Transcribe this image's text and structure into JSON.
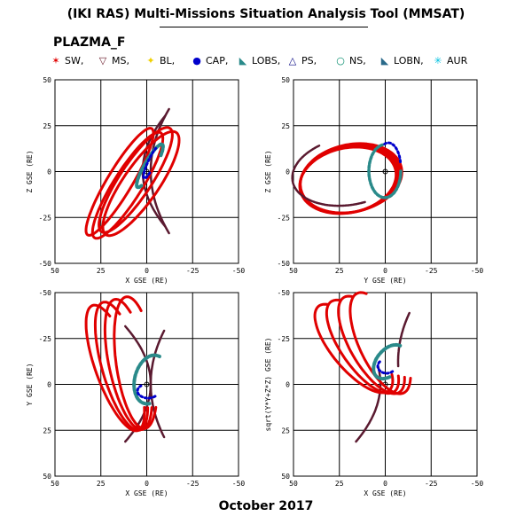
{
  "header": {
    "title": "(IKI RAS) Multi-Missions Situation Analysis Tool (MMSAT)",
    "plot_id": "PLAZMA_F",
    "date": "October 2017"
  },
  "legend": [
    {
      "label": "SW,",
      "symbol": "✶",
      "color": "#e00000",
      "icon": "asterisk-icon"
    },
    {
      "label": "MS,",
      "symbol": "▽",
      "color": "#6a1a2a",
      "icon": "triangle-down-icon"
    },
    {
      "label": "BL,",
      "symbol": "✦",
      "color": "#f0d000",
      "icon": "star-icon"
    },
    {
      "label": "CAP,",
      "symbol": "●",
      "color": "#0000cc",
      "icon": "filled-circle-icon"
    },
    {
      "label": "LOBS,",
      "symbol": "◣",
      "color": "#2a8a8a",
      "icon": "filled-triangle-icon"
    },
    {
      "label": "PS,",
      "symbol": "△",
      "color": "#000080",
      "icon": "triangle-up-icon"
    },
    {
      "label": "NS,",
      "symbol": "○",
      "color": "#008a6a",
      "icon": "open-circle-icon"
    },
    {
      "label": "LOBN,",
      "symbol": "◣",
      "color": "#2a6a8a",
      "icon": "filled-triangle-icon"
    },
    {
      "label": "AUR",
      "symbol": "✳",
      "color": "#00c0e0",
      "icon": "asterisk-icon"
    }
  ],
  "chart_data": [
    {
      "type": "scatter",
      "xlabel": "X GSE (RE)",
      "ylabel": "Z GSE (RE)",
      "xlim": [
        50,
        -50
      ],
      "ylim": [
        -50,
        50
      ],
      "xticks": [
        "50",
        "25",
        "0",
        "-25",
        "-50"
      ],
      "yticks": [
        "50",
        "25",
        "0",
        "-25",
        "-50"
      ],
      "grid": true
    },
    {
      "type": "scatter",
      "xlabel": "Y GSE (RE)",
      "ylabel": "Z GSE (RE)",
      "xlim": [
        50,
        -50
      ],
      "ylim": [
        -50,
        50
      ],
      "xticks": [
        "50",
        "25",
        "0",
        "-25",
        "-50"
      ],
      "yticks": [
        "50",
        "25",
        "0",
        "-25",
        "-50"
      ],
      "grid": true
    },
    {
      "type": "scatter",
      "xlabel": "X GSE (RE)",
      "ylabel": "Y GSE (RE)",
      "xlim": [
        50,
        -50
      ],
      "ylim": [
        50,
        -50
      ],
      "xticks": [
        "50",
        "25",
        "0",
        "-25",
        "-50"
      ],
      "yticks": [
        "-50",
        "-25",
        "0",
        "25",
        "50"
      ],
      "grid": true
    },
    {
      "type": "scatter",
      "xlabel": "X GSE (RE)",
      "ylabel": "sqrt(Y*Y+Z*Z) GSE (RE)",
      "xlim": [
        50,
        -50
      ],
      "ylim": [
        50,
        -50
      ],
      "xticks": [
        "50",
        "25",
        "0",
        "-25",
        "-50"
      ],
      "yticks": [
        "-50",
        "-25",
        "0",
        "25",
        "50"
      ],
      "grid": true
    }
  ],
  "colors": {
    "sw": "#e00000",
    "ms": "#6a1a2a",
    "boundary": "#5a1a30",
    "ps": "#2a8a8a",
    "cap": "#0000cc",
    "bl": "#f0d000",
    "aur": "#00c0e0"
  }
}
